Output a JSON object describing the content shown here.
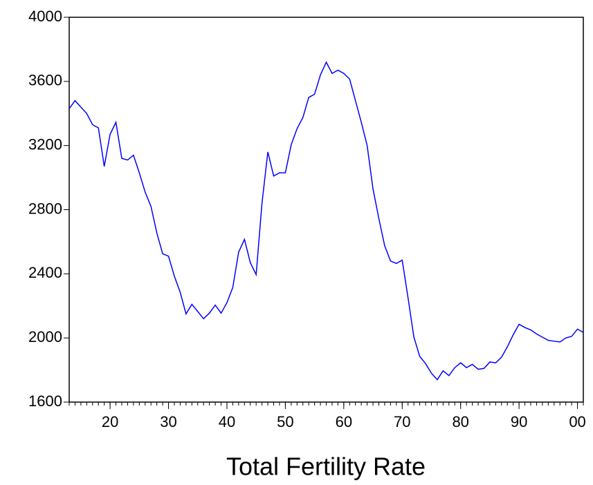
{
  "chart_data": {
    "type": "line",
    "title": "Total Fertility Rate",
    "x": [
      1913,
      1914,
      1915,
      1916,
      1917,
      1918,
      1919,
      1920,
      1921,
      1922,
      1923,
      1924,
      1925,
      1926,
      1927,
      1928,
      1929,
      1930,
      1931,
      1932,
      1933,
      1934,
      1935,
      1936,
      1937,
      1938,
      1939,
      1940,
      1941,
      1942,
      1943,
      1944,
      1945,
      1946,
      1947,
      1948,
      1949,
      1950,
      1951,
      1952,
      1953,
      1954,
      1955,
      1956,
      1957,
      1958,
      1959,
      1960,
      1961,
      1962,
      1963,
      1964,
      1965,
      1966,
      1967,
      1968,
      1969,
      1970,
      1971,
      1972,
      1973,
      1974,
      1975,
      1976,
      1977,
      1978,
      1979,
      1980,
      1981,
      1982,
      1983,
      1984,
      1985,
      1986,
      1987,
      1988,
      1989,
      1990,
      1991,
      1992,
      1993,
      1994,
      1995,
      1996,
      1997,
      1998,
      1999,
      2000,
      2001
    ],
    "series": [
      {
        "color": "#0000ff",
        "values": [
          3430,
          3480,
          3440,
          3400,
          3330,
          3310,
          3070,
          3270,
          3345,
          3120,
          3110,
          3140,
          3030,
          2910,
          2820,
          2655,
          2525,
          2510,
          2385,
          2285,
          2150,
          2210,
          2165,
          2120,
          2155,
          2205,
          2155,
          2220,
          2315,
          2535,
          2615,
          2470,
          2395,
          2840,
          3160,
          3010,
          3030,
          3030,
          3205,
          3305,
          3375,
          3500,
          3520,
          3640,
          3720,
          3650,
          3670,
          3650,
          3615,
          3480,
          3345,
          3200,
          2930,
          2745,
          2575,
          2480,
          2465,
          2485,
          2250,
          2005,
          1885,
          1840,
          1780,
          1740,
          1795,
          1765,
          1815,
          1845,
          1815,
          1835,
          1805,
          1810,
          1850,
          1845,
          1880,
          1945,
          2020,
          2085,
          2065,
          2050,
          2025,
          2005,
          1985,
          1980,
          1975,
          2000,
          2010,
          2055,
          2035
        ]
      }
    ],
    "xlim": [
      1913,
      2001
    ],
    "xticks": [
      {
        "value": 1920,
        "label": "20"
      },
      {
        "value": 1930,
        "label": "30"
      },
      {
        "value": 1940,
        "label": "40"
      },
      {
        "value": 1950,
        "label": "50"
      },
      {
        "value": 1960,
        "label": "60"
      },
      {
        "value": 1970,
        "label": "70"
      },
      {
        "value": 1980,
        "label": "80"
      },
      {
        "value": 1990,
        "label": "90"
      },
      {
        "value": 2000,
        "label": "00"
      }
    ],
    "ylim": [
      1600,
      4000
    ],
    "yticks": [
      1600,
      2000,
      2400,
      2800,
      3200,
      3600,
      4000
    ],
    "grid": false
  }
}
